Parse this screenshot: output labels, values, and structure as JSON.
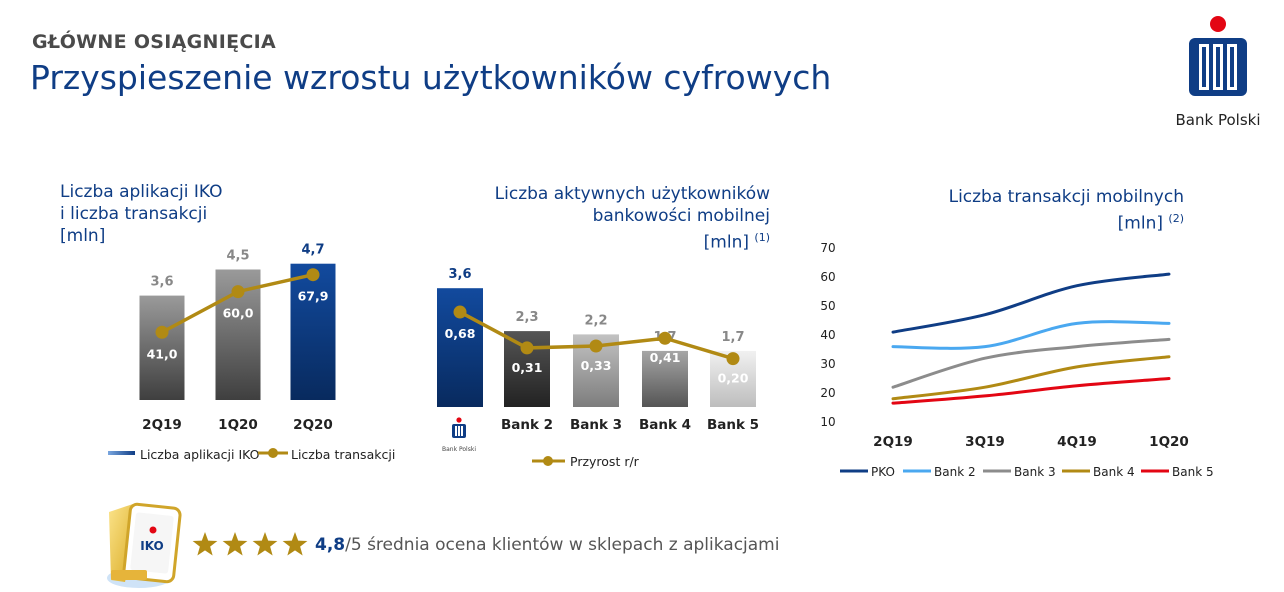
{
  "header": {
    "kicker": "GŁÓWNE OSIĄGNIĘCIA",
    "title": "Przyspieszenie wzrostu użytkowników cyfrowych"
  },
  "logo": {
    "caption": "Bank Polski"
  },
  "colors": {
    "brand_navy": "#0f3d85",
    "gold": "#b18a14",
    "red": "#e30613"
  },
  "chart_data": [
    {
      "type": "bar",
      "title_lines": [
        "Liczba aplikacji IKO",
        "i liczba transakcji",
        "[mln]"
      ],
      "categories": [
        "2Q19",
        "1Q20",
        "2Q20"
      ],
      "series": [
        {
          "name": "Liczba aplikacji IKO",
          "type": "bar",
          "values": [
            3.6,
            4.5,
            4.7
          ],
          "labels": [
            "3,6",
            "4,5",
            "4,7"
          ]
        },
        {
          "name": "Liczba transakcji",
          "type": "line",
          "values": [
            41.0,
            60.0,
            67.9
          ],
          "labels": [
            "41,0",
            "60,0",
            "67,9"
          ]
        }
      ],
      "legend": "bottom"
    },
    {
      "type": "bar",
      "title_lines": [
        "Liczba aktywnych użytkowników",
        "bankowości mobilnej",
        "[mln]"
      ],
      "footnote": "(1)",
      "categories": [
        "Bank Polski",
        "Bank 2",
        "Bank 3",
        "Bank 4",
        "Bank 5"
      ],
      "category_logo": "PKO Bank Polski",
      "series": [
        {
          "name": "Liczba aktywnych użytkowników",
          "type": "bar",
          "values": [
            3.6,
            2.3,
            2.2,
            1.7,
            1.7
          ],
          "labels": [
            "3,6",
            "2,3",
            "2,2",
            "1,7",
            "1,7"
          ]
        },
        {
          "name": "Przyrost r/r",
          "type": "line",
          "values": [
            0.68,
            0.31,
            0.33,
            0.41,
            0.2
          ],
          "labels": [
            "0,68",
            "0,31",
            "0,33",
            "0,41",
            "0,20"
          ]
        }
      ],
      "legend": "bottom"
    },
    {
      "type": "line",
      "title_lines": [
        "Liczba transakcji mobilnych",
        "[mln]"
      ],
      "footnote": "(2)",
      "x": [
        "2Q19",
        "3Q19",
        "4Q19",
        "1Q20"
      ],
      "ylim": [
        10,
        70
      ],
      "yticks": [
        "70",
        "60",
        "50",
        "40",
        "30",
        "20",
        "10"
      ],
      "grid": false,
      "series": [
        {
          "name": "PKO",
          "color": "#0f3d85",
          "values": [
            41,
            47,
            57,
            61
          ]
        },
        {
          "name": "Bank 2",
          "color": "#4aa8f0",
          "values": [
            36,
            36,
            44,
            44
          ]
        },
        {
          "name": "Bank 3",
          "color": "#8c8c8c",
          "values": [
            22,
            32,
            36,
            38.5
          ]
        },
        {
          "name": "Bank 4",
          "color": "#b18a14",
          "values": [
            18,
            22,
            29,
            32.5
          ]
        },
        {
          "name": "Bank 5",
          "color": "#e30613",
          "values": [
            16.5,
            19,
            22.5,
            25
          ]
        }
      ],
      "legend": "bottom"
    }
  ],
  "footer": {
    "stars": 4,
    "score": "4,8",
    "out_of": "/5",
    "text": " średnia ocena klientów w sklepach z aplikacjami",
    "app_icon_label": "IKO"
  }
}
